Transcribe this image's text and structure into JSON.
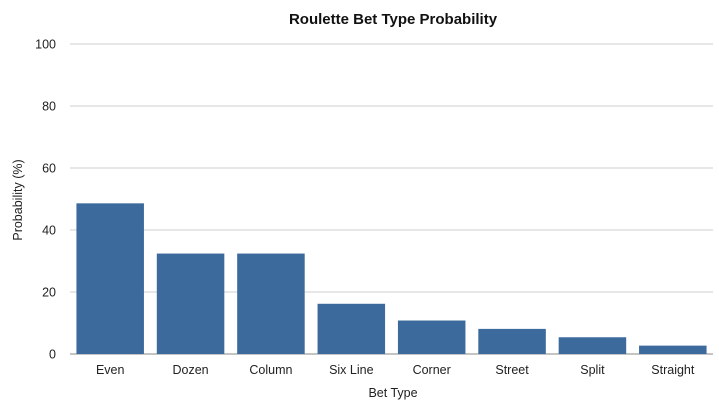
{
  "chart_data": {
    "type": "bar",
    "title": "Roulette Bet Type Probability",
    "xlabel": "Bet Type",
    "ylabel": "Probability (%)",
    "categories": [
      "Even",
      "Dozen",
      "Column",
      "Six Line",
      "Corner",
      "Street",
      "Split",
      "Straight"
    ],
    "values": [
      48.6,
      32.4,
      32.4,
      16.2,
      10.8,
      8.1,
      5.4,
      2.7
    ],
    "ylim": [
      0,
      100
    ],
    "yticks": [
      0,
      20,
      40,
      60,
      80,
      100
    ],
    "grid": true,
    "legend": "none",
    "bar_color": "#3d6a9d"
  }
}
